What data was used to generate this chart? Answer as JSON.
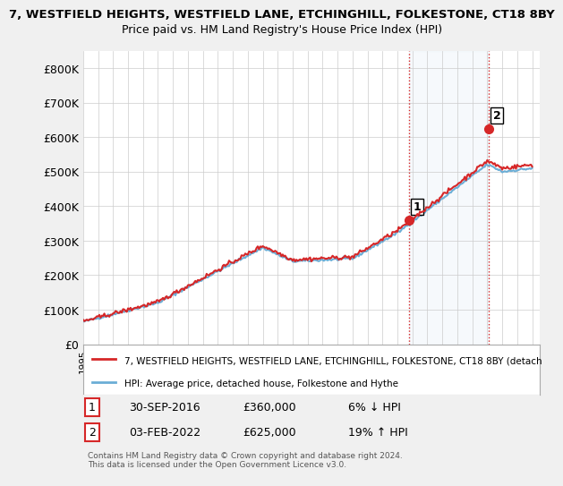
{
  "title_line1": "7, WESTFIELD HEIGHTS, WESTFIELD LANE, ETCHINGHILL, FOLKESTONE, CT18 8BY",
  "title_line2": "Price paid vs. HM Land Registry's House Price Index (HPI)",
  "ylabel": "",
  "xlabel": "",
  "ylim": [
    0,
    850000
  ],
  "yticks": [
    0,
    100000,
    200000,
    300000,
    400000,
    500000,
    600000,
    700000,
    800000
  ],
  "ytick_labels": [
    "£0",
    "£100K",
    "£200K",
    "£300K",
    "£400K",
    "£500K",
    "£600K",
    "£700K",
    "£800K"
  ],
  "hpi_color": "#6baed6",
  "price_color": "#d62728",
  "marker1_year": 2016.75,
  "marker1_price": 360000,
  "marker2_year": 2022.09,
  "marker2_price": 625000,
  "vline_color": "#d62728",
  "vline_style": ":",
  "shade_color": "#c6dbef",
  "legend_label1": "7, WESTFIELD HEIGHTS, WESTFIELD LANE, ETCHINGHILL, FOLKESTONE, CT18 8BY (detach",
  "legend_label2": "HPI: Average price, detached house, Folkestone and Hythe",
  "annotation1_label": "1",
  "annotation1_date": "30-SEP-2016",
  "annotation1_price": "£360,000",
  "annotation1_change": "6% ↓ HPI",
  "annotation2_label": "2",
  "annotation2_date": "03-FEB-2022",
  "annotation2_price": "£625,000",
  "annotation2_change": "19% ↑ HPI",
  "footer": "Contains HM Land Registry data © Crown copyright and database right 2024.\nThis data is licensed under the Open Government Licence v3.0.",
  "background_color": "#f0f0f0",
  "plot_bg_color": "#ffffff",
  "xstart": 1995.0,
  "xend": 2025.5
}
